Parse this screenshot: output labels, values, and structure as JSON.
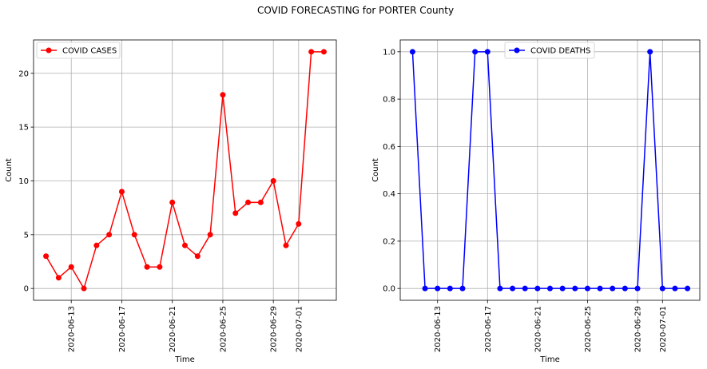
{
  "figure": {
    "title": "COVID FORECASTING for PORTER County"
  },
  "chart_data": [
    {
      "type": "line",
      "title": "",
      "xlabel": "Time",
      "ylabel": "Count",
      "x": [
        "2020-06-11",
        "2020-06-12",
        "2020-06-13",
        "2020-06-14",
        "2020-06-15",
        "2020-06-16",
        "2020-06-17",
        "2020-06-18",
        "2020-06-19",
        "2020-06-20",
        "2020-06-21",
        "2020-06-22",
        "2020-06-23",
        "2020-06-24",
        "2020-06-25",
        "2020-06-26",
        "2020-06-27",
        "2020-06-28",
        "2020-06-29",
        "2020-06-30",
        "2020-07-01",
        "2020-07-02",
        "2020-07-03"
      ],
      "series": [
        {
          "name": "COVID CASES",
          "color": "#ff0000",
          "values": [
            3,
            1,
            2,
            0,
            4,
            5,
            9,
            5,
            2,
            2,
            8,
            4,
            3,
            5,
            18,
            7,
            8,
            8,
            10,
            4,
            6,
            22,
            22
          ]
        }
      ],
      "xticks": [
        "2020-06-13",
        "2020-06-17",
        "2020-06-21",
        "2020-06-25",
        "2020-06-29",
        "2020-07-01"
      ],
      "yticks": [
        0,
        5,
        10,
        15,
        20
      ],
      "ytick_labels": [
        "0",
        "5",
        "10",
        "15",
        "20"
      ],
      "ylim": [
        -1.1,
        23.1
      ],
      "xlim": [
        "2020-06-10T00:21",
        "2020-07-03T23:39"
      ],
      "grid": true,
      "legend": "upper left"
    },
    {
      "type": "line",
      "title": "",
      "xlabel": "Time",
      "ylabel": "Count",
      "x": [
        "2020-06-11",
        "2020-06-12",
        "2020-06-13",
        "2020-06-14",
        "2020-06-15",
        "2020-06-16",
        "2020-06-17",
        "2020-06-18",
        "2020-06-19",
        "2020-06-20",
        "2020-06-21",
        "2020-06-22",
        "2020-06-23",
        "2020-06-24",
        "2020-06-25",
        "2020-06-26",
        "2020-06-27",
        "2020-06-28",
        "2020-06-29",
        "2020-06-30",
        "2020-07-01",
        "2020-07-02",
        "2020-07-03"
      ],
      "series": [
        {
          "name": "COVID DEATHS",
          "color": "#0000ff",
          "values": [
            1,
            0,
            0,
            0,
            0,
            1,
            1,
            0,
            0,
            0,
            0,
            0,
            0,
            0,
            0,
            0,
            0,
            0,
            0,
            1,
            0,
            0,
            0
          ]
        }
      ],
      "xticks": [
        "2020-06-13",
        "2020-06-17",
        "2020-06-21",
        "2020-06-25",
        "2020-06-29",
        "2020-07-01"
      ],
      "yticks": [
        0,
        0.2,
        0.4,
        0.6,
        0.8,
        1.0
      ],
      "ytick_labels": [
        "0.0",
        "0.2",
        "0.4",
        "0.6",
        "0.8",
        "1.0"
      ],
      "ylim": [
        -0.05,
        1.05
      ],
      "xlim": [
        "2020-06-10T00:21",
        "2020-07-03T23:39"
      ],
      "grid": true,
      "legend": "upper center"
    }
  ]
}
